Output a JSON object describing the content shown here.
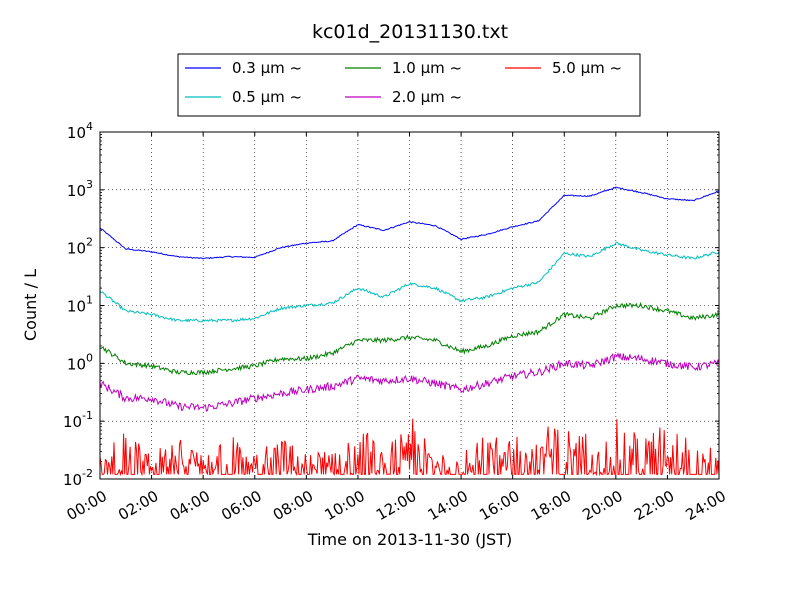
{
  "chart_data": {
    "type": "line",
    "title": "kc01d_20131130.txt",
    "xlabel": "Time on 2013-11-30 (JST)",
    "ylabel": "Count / L",
    "yscale": "log",
    "xlim": [
      "2013-11-30T00:00",
      "2013-12-01T00:00"
    ],
    "ylim": [
      0.01,
      10000
    ],
    "grid": true,
    "legend_placement": "top-center",
    "x_tick_labels": [
      "00:00",
      "02:00",
      "04:00",
      "06:00",
      "08:00",
      "10:00",
      "12:00",
      "14:00",
      "16:00",
      "18:00",
      "20:00",
      "22:00",
      "24:00"
    ],
    "y_tick_labels": [
      {
        "base": "10",
        "exp": "-2"
      },
      {
        "base": "10",
        "exp": "-1"
      },
      {
        "base": "10",
        "exp": "0"
      },
      {
        "base": "10",
        "exp": "1"
      },
      {
        "base": "10",
        "exp": "2"
      },
      {
        "base": "10",
        "exp": "3"
      },
      {
        "base": "10",
        "exp": "4"
      }
    ],
    "x": [
      "2013-11-30T00:00",
      "2013-11-30T01:00",
      "2013-11-30T02:00",
      "2013-11-30T03:00",
      "2013-11-30T04:00",
      "2013-11-30T05:00",
      "2013-11-30T06:00",
      "2013-11-30T07:00",
      "2013-11-30T08:00",
      "2013-11-30T09:00",
      "2013-11-30T10:00",
      "2013-11-30T11:00",
      "2013-11-30T12:00",
      "2013-11-30T13:00",
      "2013-11-30T14:00",
      "2013-11-30T15:00",
      "2013-11-30T16:00",
      "2013-11-30T17:00",
      "2013-11-30T18:00",
      "2013-11-30T19:00",
      "2013-11-30T20:00",
      "2013-11-30T21:00",
      "2013-11-30T22:00",
      "2013-11-30T23:00",
      "2013-12-01T00:00"
    ],
    "series": [
      {
        "name": "0.3 μm ~",
        "color": "#0000ff",
        "values": [
          220,
          95,
          85,
          70,
          65,
          70,
          68,
          100,
          120,
          130,
          250,
          200,
          280,
          240,
          140,
          170,
          230,
          290,
          800,
          780,
          1100,
          900,
          700,
          650,
          950
        ]
      },
      {
        "name": "0.5 μm ~",
        "color": "#00bfbf",
        "values": [
          18,
          8,
          7,
          5.5,
          5.5,
          5.5,
          6,
          9,
          10,
          11,
          20,
          14,
          24,
          20,
          12,
          14,
          20,
          25,
          80,
          70,
          120,
          90,
          75,
          65,
          85
        ]
      },
      {
        "name": "1.0 μm ~",
        "color": "#008000",
        "values": [
          2,
          1,
          0.9,
          0.7,
          0.7,
          0.8,
          0.9,
          1.2,
          1.2,
          1.5,
          2.5,
          2.5,
          2.8,
          2.5,
          1.6,
          2.0,
          3.0,
          3.5,
          7,
          6,
          10,
          10,
          8,
          6,
          7
        ]
      },
      {
        "name": "2.0 μm ~",
        "color": "#bf00bf",
        "values": [
          0.45,
          0.25,
          0.25,
          0.18,
          0.17,
          0.2,
          0.25,
          0.3,
          0.35,
          0.4,
          0.55,
          0.5,
          0.55,
          0.45,
          0.35,
          0.45,
          0.6,
          0.7,
          1.0,
          0.9,
          1.3,
          1.2,
          1.0,
          0.85,
          1.0
        ]
      },
      {
        "name": "5.0 μm ~",
        "color": "#ff0000",
        "values": [
          0.012,
          0.03,
          0.012,
          0.025,
          0.012,
          0.03,
          0.012,
          0.025,
          0.012,
          0.015,
          0.05,
          0.012,
          0.06,
          0.012,
          0.02,
          0.025,
          0.03,
          0.04,
          0.035,
          0.03,
          0.05,
          0.03,
          0.04,
          0.03,
          0.012
        ]
      }
    ]
  }
}
